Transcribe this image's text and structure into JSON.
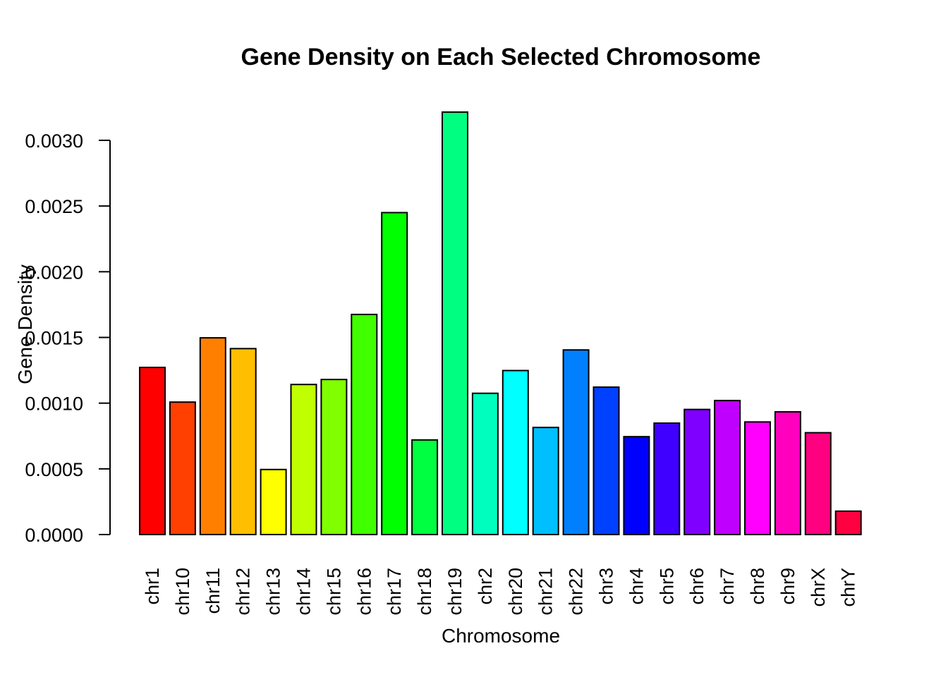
{
  "chart_data": {
    "type": "bar",
    "title": "Gene Density on Each Selected Chromosome",
    "xlabel": "Chromosome",
    "ylabel": "Gene Density",
    "ylim": [
      0,
      0.0032
    ],
    "yticks": [
      "0.0000",
      "0.0005",
      "0.0010",
      "0.0015",
      "0.0020",
      "0.0025",
      "0.0030"
    ],
    "ytick_values": [
      0,
      0.0005,
      0.001,
      0.0015,
      0.002,
      0.0025,
      0.003
    ],
    "grid": false,
    "legend": "none",
    "categories": [
      "chr1",
      "chr10",
      "chr11",
      "chr12",
      "chr13",
      "chr14",
      "chr15",
      "chr16",
      "chr17",
      "chr18",
      "chr19",
      "chr2",
      "chr20",
      "chr21",
      "chr22",
      "chr3",
      "chr4",
      "chr5",
      "chr6",
      "chr7",
      "chr8",
      "chr9",
      "chrX",
      "chrY"
    ],
    "values": [
      0.001272,
      0.001008,
      0.001497,
      0.001415,
      0.000495,
      0.001142,
      0.00118,
      0.001675,
      0.00245,
      0.00072,
      0.003215,
      0.001075,
      0.001248,
      0.000815,
      0.001405,
      0.001122,
      0.000745,
      0.000848,
      0.000952,
      0.00102,
      0.000857,
      0.000934,
      0.000775,
      0.000178
    ],
    "colors": [
      "#FF0000",
      "#FF4000",
      "#FF8000",
      "#FFBF00",
      "#FFFF00",
      "#BFFF00",
      "#80FF00",
      "#40FF00",
      "#00FF00",
      "#00FF40",
      "#00FF80",
      "#00FFBF",
      "#00FFFF",
      "#00BFFF",
      "#0080FF",
      "#0040FF",
      "#0000FF",
      "#4000FF",
      "#8000FF",
      "#BF00FF",
      "#FF00FF",
      "#FF00BF",
      "#FF0080",
      "#FF0040"
    ]
  }
}
